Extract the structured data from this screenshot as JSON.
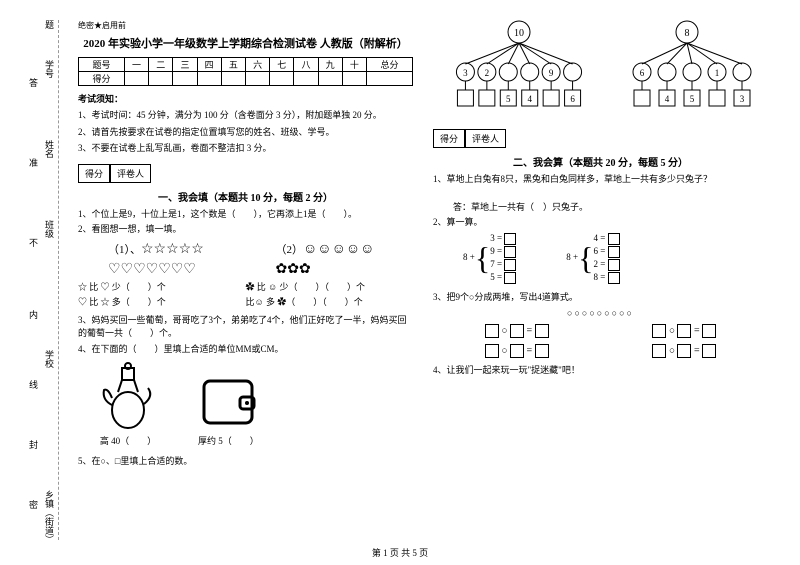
{
  "sidebar": {
    "labels": [
      "学号",
      "姓名",
      "班级",
      "学校",
      "乡镇（街道）"
    ],
    "marks": [
      "答",
      "准",
      "不",
      "内",
      "线",
      "封",
      "密"
    ],
    "top": "题"
  },
  "header": {
    "secret": "绝密★启用前",
    "title": "2020 年实验小学一年级数学上学期综合检测试卷  人教版（附解析）"
  },
  "scoreTable": {
    "cols": [
      "题号",
      "一",
      "二",
      "三",
      "四",
      "五",
      "六",
      "七",
      "八",
      "九",
      "十",
      "总分"
    ],
    "row2": "得分"
  },
  "instructions": {
    "head": "考试须知：",
    "items": [
      "1、考试时间：45 分钟，满分为 100 分（含卷面分 3 分），附加题单独 20 分。",
      "2、请首先按要求在试卷的指定位置填写您的姓名、班级、学号。",
      "3、不要在试卷上乱写乱画，卷面不整洁扣 3 分。"
    ]
  },
  "scorebox": {
    "a": "得分",
    "b": "评卷人"
  },
  "sectionA": {
    "title": "一、我会填（本题共 10 分，每题 2 分）",
    "q1": "1、个位上是9，十位上是1，这个数是（　　），它再添上1是（　　）。",
    "q2": "2、看图想一想，填一填。",
    "row1a": "（1）、",
    "row1b": "（2）",
    "shapes_star": "☆☆☆☆☆",
    "shapes_heart": "♡♡♡♡♡♡♡",
    "shapes_face": "☺☺☺☺☺",
    "shapes_flower": "✿✿✿",
    "cmp1": "☆ 比 ♡ 少（　　）个",
    "cmp2": "♡ 比 ☆ 多（　　）个",
    "cmp3": "✿ 比 ☺ 少（　　）（　　）个",
    "cmp4": "比☺ 多 ✿（　　）（　　）个",
    "q3": "3、妈妈买回一些葡萄，哥哥吃了3个，弟弟吃了4个，他们正好吃了一半，妈妈买回的葡萄一共（　　）个。",
    "q4": "4、在下面的（　　）里填上合适的单位MM或CM。",
    "q4a": "高 40（　　）",
    "q4b": "厚约 5（　　）",
    "q5": "5、在○、□里填上合适的数。"
  },
  "right": {
    "tree1": {
      "root": "10",
      "children": [
        "3",
        "2",
        "",
        "",
        "9",
        ""
      ],
      "sq": [
        "",
        "",
        "5",
        "4",
        "",
        "6"
      ]
    },
    "tree2": {
      "root": "8",
      "children": [
        "6",
        "",
        "",
        "1",
        ""
      ],
      "sq": [
        "",
        "4",
        "5",
        "",
        "3"
      ]
    },
    "sectionB": {
      "title": "二、我会算（本题共 20 分，每题 5 分）",
      "q1": "1、草地上白兔有8只，黑兔和白兔同样多，草地上一共有多少只兔子？",
      "q1a": "答：草地上一共有（　）只兔子。",
      "q2": "2、算一算。",
      "left": [
        "3 =",
        "9 =",
        "7 =",
        "5 ="
      ],
      "rightv": [
        "4 =",
        "6 =",
        "2 =",
        "8 ="
      ],
      "prefix": "8 +",
      "q3": "3、把9个○分成两堆，写出4道算式。",
      "circles": "○○○○○○○○○",
      "q4": "4、让我们一起来玩一玩\"捉迷藏\"吧！"
    }
  },
  "footer": "第 1 页 共 5 页"
}
